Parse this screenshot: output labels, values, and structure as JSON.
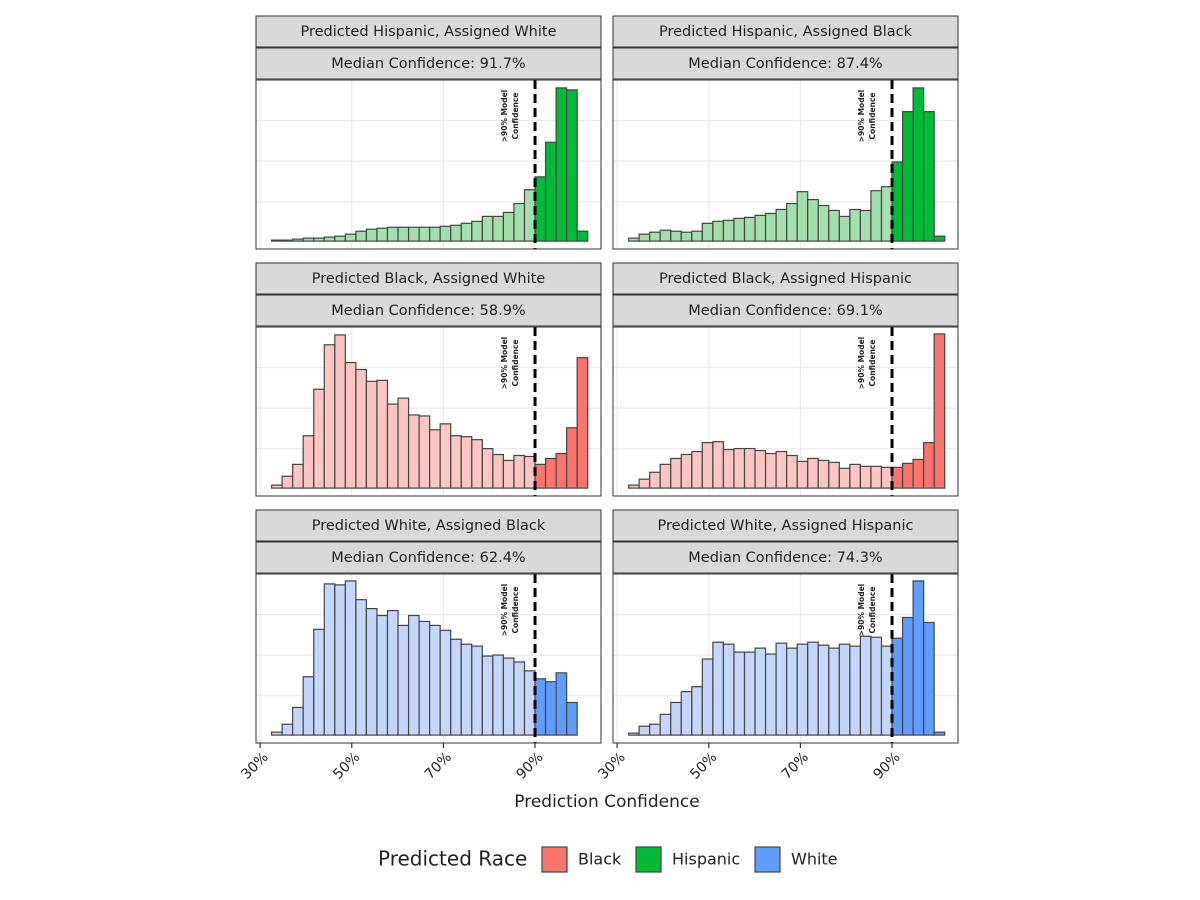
{
  "chart_data": {
    "type": "histogram",
    "xlabel": "Prediction Confidence",
    "bins": [
      32.5,
      34.8,
      37.1,
      39.4,
      41.7,
      44,
      46.3,
      48.6,
      50.9,
      53.2,
      55.5,
      57.8,
      60.1,
      62.4,
      64.7,
      67,
      69.3,
      71.6,
      73.9,
      76.2,
      78.5,
      80.8,
      83.1,
      85.4,
      87.7,
      90,
      92.3,
      94.6,
      96.9,
      99.2,
      101.5
    ],
    "xlim": [
      29.1,
      104.4
    ],
    "xticks": [
      {
        "value": 30,
        "label": "30%"
      },
      {
        "value": 50,
        "label": "50%"
      },
      {
        "value": 70,
        "label": "70%"
      },
      {
        "value": 90,
        "label": "90%"
      }
    ],
    "ylim": [
      -8,
      163
    ],
    "grid": true,
    "vline": 90,
    "annotation": [
      ">90% Model",
      "Confidence"
    ],
    "legend_title": "Predicted Race",
    "legend": [
      {
        "name": "Black",
        "color": "#f8766d"
      },
      {
        "name": "Hispanic",
        "color": "#00ba38"
      },
      {
        "name": "White",
        "color": "#619cff"
      }
    ],
    "panels": [
      {
        "title": "Predicted Hispanic, Assigned White",
        "subtitle": "Median Confidence: 91.7%",
        "color": "#00ba38",
        "light_color": "#a3dfac",
        "values": [
          1,
          1,
          2,
          3,
          3,
          4,
          5,
          7,
          10,
          12,
          13,
          14,
          14,
          14,
          14,
          14,
          15,
          16,
          18,
          20,
          25,
          25,
          29,
          38,
          52,
          65,
          100,
          155,
          153,
          10
        ]
      },
      {
        "title": "Predicted Hispanic, Assigned Black",
        "subtitle": "Median Confidence: 87.4%",
        "color": "#00ba38",
        "light_color": "#a3dfac",
        "values": [
          3,
          7,
          9,
          11,
          10,
          9,
          10,
          18,
          20,
          21,
          23,
          24,
          26,
          28,
          32,
          38,
          50,
          42,
          36,
          31,
          25,
          32,
          31,
          51,
          55,
          80,
          131,
          155,
          131,
          5
        ]
      },
      {
        "title": "Predicted Black, Assigned White",
        "subtitle": "Median Confidence: 58.9%",
        "color": "#f8766d",
        "light_color": "#fbc6c2",
        "values": [
          3,
          12,
          24,
          53,
          100,
          145,
          155,
          127,
          120,
          108,
          109,
          85,
          91,
          74,
          73,
          59,
          65,
          53,
          52,
          49,
          40,
          34,
          28,
          33,
          32,
          24,
          30,
          35,
          61,
          132
        ]
      },
      {
        "title": "Predicted Black, Assigned Hispanic",
        "subtitle": "Median Confidence: 69.1%",
        "color": "#f8766d",
        "light_color": "#fbc6c2",
        "values": [
          3,
          9,
          16,
          24,
          30,
          34,
          37,
          46,
          47,
          39,
          40,
          40,
          38,
          35,
          37,
          33,
          27,
          30,
          28,
          26,
          20,
          24,
          22,
          22,
          21,
          21,
          25,
          29,
          46,
          156
        ]
      },
      {
        "title": "Predicted White, Assigned Black",
        "subtitle": "Median Confidence: 62.4%",
        "color": "#619cff",
        "light_color": "#c4d7fb",
        "values": [
          3,
          11,
          28,
          59,
          107,
          153,
          152,
          156,
          137,
          128,
          121,
          126,
          111,
          121,
          115,
          111,
          106,
          97,
          92,
          90,
          80,
          81,
          78,
          74,
          65,
          57,
          54,
          63,
          33,
          0
        ]
      },
      {
        "title": "Predicted White, Assigned Hispanic",
        "subtitle": "Median Confidence: 74.3%",
        "color": "#619cff",
        "light_color": "#c4d7fb",
        "values": [
          2,
          9,
          11,
          21,
          33,
          44,
          49,
          77,
          94,
          92,
          84,
          84,
          88,
          82,
          93,
          88,
          92,
          94,
          91,
          88,
          92,
          90,
          100,
          99,
          90,
          98,
          119,
          156,
          114,
          3
        ]
      }
    ]
  }
}
